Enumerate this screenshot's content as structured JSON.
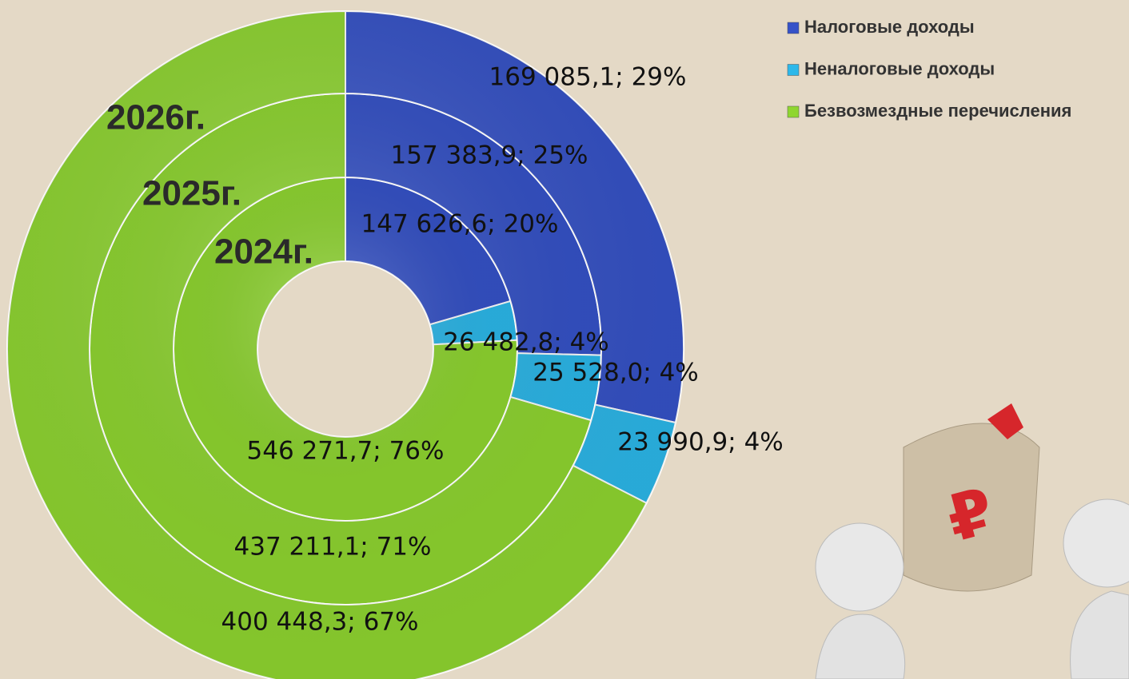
{
  "chart_data": {
    "type": "donut",
    "categories": [
      "Налоговые доходы",
      "Неналоговые доходы",
      "Безвозмездные перечисления"
    ],
    "colors": [
      "#3552c8",
      "#2cb8ea",
      "#8fd630"
    ],
    "series": [
      {
        "name": "2024г.",
        "values": [
          147626.6,
          26482.8,
          546271.7
        ],
        "value_labels": [
          "147 626,6; 20%",
          "26 482,8; 4%",
          "546 271,7; 76%"
        ]
      },
      {
        "name": "2025г.",
        "values": [
          157383.9,
          25528.0,
          437211.1
        ],
        "value_labels": [
          "157 383,9; 25%",
          "25 528,0; 4%",
          "437 211,1; 71%"
        ]
      },
      {
        "name": "2026г.",
        "values": [
          169085.1,
          23990.9,
          400448.3
        ],
        "value_labels": [
          "169 085,1; 29%",
          "23 990,9; 4%",
          "400 448,3; 67%"
        ]
      }
    ],
    "legend": "top-right"
  }
}
